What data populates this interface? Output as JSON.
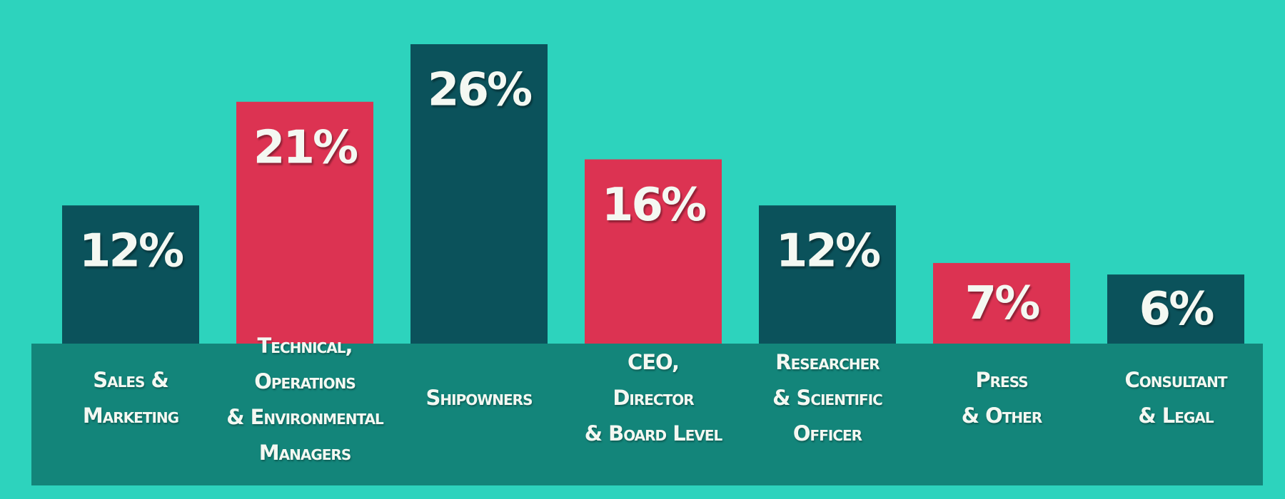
{
  "chart_data": {
    "type": "bar",
    "categories": [
      [
        "Sales &",
        "Marketing"
      ],
      [
        "Technical,",
        "Operations",
        "& Environmental",
        "Managers"
      ],
      [
        "Shipowners"
      ],
      [
        "CEO,",
        "Director",
        "& Board Level"
      ],
      [
        "Researcher",
        "& Scientific",
        "Officer"
      ],
      [
        "Press",
        "& Other"
      ],
      [
        "Consultant",
        "& Legal"
      ]
    ],
    "values": [
      12,
      21,
      26,
      16,
      12,
      7,
      6
    ],
    "value_labels": [
      "12%",
      "21%",
      "26%",
      "16%",
      "12%",
      "7%",
      "6%"
    ],
    "colors": [
      "#0b525b",
      "#dc3352",
      "#0b525b",
      "#dc3352",
      "#0b525b",
      "#dc3352",
      "#0b525b"
    ]
  }
}
